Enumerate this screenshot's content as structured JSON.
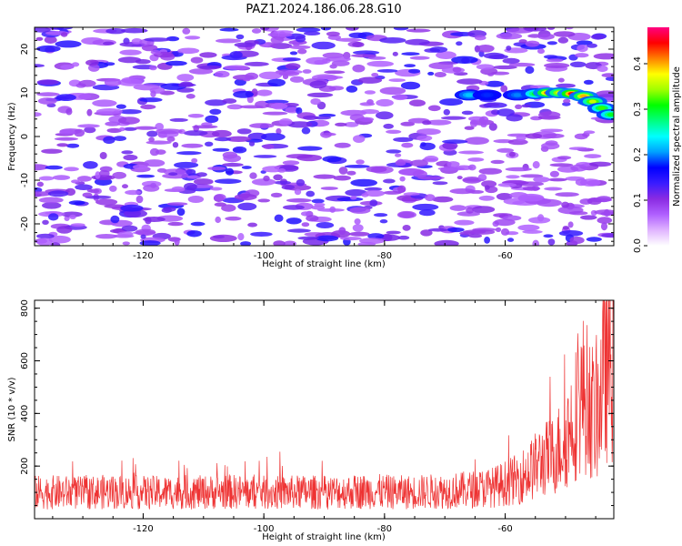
{
  "title": "PAZ1.2024.186.06.28.G10",
  "chart_data": [
    {
      "type": "heatmap",
      "description_source": "filled contour map",
      "xlabel": "Height of straight line (km)",
      "ylabel": "Frequency (Hz)",
      "xlim": [
        -138,
        -42
      ],
      "ylim": [
        -25,
        25
      ],
      "xticks": [
        -120,
        -100,
        -80,
        -60
      ],
      "yticks": [
        -20,
        -10,
        0,
        10,
        20
      ],
      "xtick_labels": [
        "-120",
        "-100",
        "-80",
        "-60"
      ],
      "ytick_labels": [
        "-20",
        "-10",
        "0",
        "10",
        "20"
      ],
      "colorbar": {
        "label": "Normalized spectral amplitude",
        "range": [
          0,
          0.48
        ],
        "ticks": [
          0.0,
          0.1,
          0.2,
          0.3,
          0.4
        ],
        "tick_labels": [
          "0.0",
          "0.1",
          "0.2",
          "0.3",
          "0.4"
        ],
        "colormap": [
          "#ffffff",
          "#e0b4ff",
          "#b060ff",
          "#8a2be2",
          "#3a1cff",
          "#0000ff",
          "#00a0ff",
          "#00ffff",
          "#00ff80",
          "#00ff00",
          "#a0ff00",
          "#ffff00",
          "#ff8000",
          "#ff0000",
          "#ff0080"
        ]
      },
      "grid": false,
      "features": {
        "strong_ridge": [
          {
            "x": -66,
            "y": 9.5,
            "amp": 0.22
          },
          {
            "x": -63,
            "y": 9.5,
            "amp": 0.18
          },
          {
            "x": -58,
            "y": 9.5,
            "amp": 0.2
          },
          {
            "x": -55,
            "y": 9.8,
            "amp": 0.3
          },
          {
            "x": -53,
            "y": 10.0,
            "amp": 0.42
          },
          {
            "x": -51,
            "y": 10.0,
            "amp": 0.38
          },
          {
            "x": -49,
            "y": 9.8,
            "amp": 0.45
          },
          {
            "x": -47,
            "y": 9.2,
            "amp": 0.4
          },
          {
            "x": -45.5,
            "y": 8.0,
            "amp": 0.36
          },
          {
            "x": -44,
            "y": 6.5,
            "amp": 0.32
          },
          {
            "x": -42.5,
            "y": 5.0,
            "amp": 0.3
          }
        ]
      }
    },
    {
      "type": "line",
      "xlabel": "Height of straight line (km)",
      "ylabel": "SNR (10 * v/v)",
      "xlim": [
        -138,
        -42
      ],
      "ylim": [
        0,
        830
      ],
      "xticks": [
        -120,
        -100,
        -80,
        -60
      ],
      "yticks": [
        200,
        400,
        600,
        800
      ],
      "xtick_labels": [
        "-120",
        "-100",
        "-80",
        "-60"
      ],
      "ytick_labels": [
        "200",
        "400",
        "600",
        "800"
      ],
      "color": "#ee3333",
      "grid": false,
      "series": [
        {
          "x": [
            -138,
            -134,
            -130,
            -126,
            -122,
            -118,
            -114,
            -110,
            -106,
            -102,
            -98,
            -94,
            -90,
            -86,
            -82,
            -78,
            -74,
            -70,
            -66,
            -62,
            -58,
            -56,
            -54,
            -52,
            -50,
            -48,
            -47,
            -46,
            -45,
            -44,
            -43,
            -42
          ],
          "y": [
            100,
            100,
            98,
            102,
            100,
            99,
            101,
            100,
            103,
            100,
            99,
            101,
            100,
            102,
            104,
            100,
            102,
            105,
            110,
            120,
            150,
            180,
            220,
            240,
            300,
            420,
            480,
            430,
            380,
            500,
            600,
            580
          ]
        }
      ]
    }
  ]
}
